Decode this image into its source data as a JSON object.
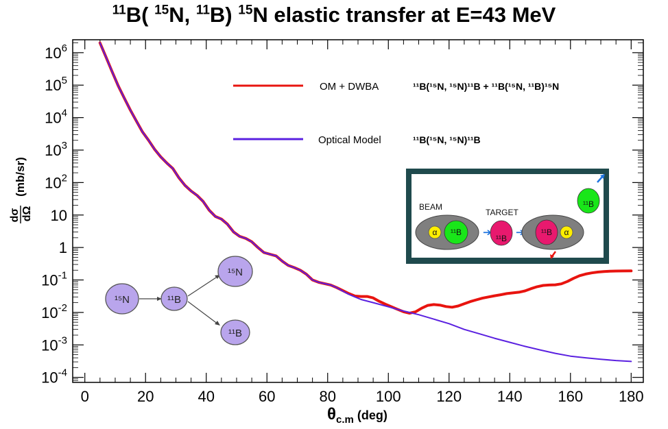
{
  "chart_data": {
    "type": "line",
    "title": "¹¹B( ¹⁵N, ¹¹B) ¹⁵N elastic transfer at E=43 MeV",
    "xlabel": "θc.m (deg)",
    "ylabel": "dσ/dΩ (mb/sr)",
    "xlim": [
      -4,
      184
    ],
    "ylim": [
      7e-05,
      2500000
    ],
    "yscale": "log",
    "xticks": [
      "0",
      "20",
      "40",
      "60",
      "80",
      "100",
      "120",
      "140",
      "160",
      "180"
    ],
    "yticks": [
      "10^-4",
      "10^-3",
      "10^-2",
      "10^-1",
      "1",
      "10",
      "10^2",
      "10^3",
      "10^4",
      "10^5",
      "10^6"
    ],
    "series": [
      {
        "name": "OM + DWBA",
        "color": "#e8140f",
        "x": [
          5,
          7,
          9,
          11,
          13,
          15,
          17,
          19,
          21,
          23,
          25,
          27,
          29,
          31,
          33,
          35,
          37,
          39,
          41,
          43,
          45,
          47,
          49,
          51,
          53,
          55,
          57,
          59,
          61,
          63,
          65,
          67,
          69,
          71,
          73,
          75,
          77,
          79,
          81,
          83,
          85,
          87,
          89,
          91,
          93,
          95,
          97,
          99,
          101,
          103,
          105,
          107,
          109,
          111,
          113,
          115,
          117,
          119,
          121,
          123,
          125,
          127,
          129,
          131,
          133,
          135,
          137,
          139,
          141,
          143,
          145,
          147,
          149,
          151,
          153,
          155,
          157,
          159,
          161,
          163,
          165,
          167,
          169,
          171,
          173,
          175,
          177,
          180
        ],
        "y": [
          2000000,
          720000,
          260000,
          95000,
          40000,
          17000,
          7800,
          3600,
          2000,
          1050,
          620,
          400,
          270,
          140,
          82,
          55,
          40,
          26,
          14,
          9,
          7.5,
          5.2,
          3.0,
          2.2,
          1.9,
          1.5,
          1.0,
          0.7,
          0.62,
          0.55,
          0.38,
          0.28,
          0.24,
          0.2,
          0.15,
          0.1,
          0.085,
          0.077,
          0.07,
          0.058,
          0.047,
          0.038,
          0.032,
          0.031,
          0.031,
          0.028,
          0.022,
          0.018,
          0.015,
          0.0125,
          0.0105,
          0.0095,
          0.0105,
          0.0135,
          0.0165,
          0.0175,
          0.0168,
          0.0152,
          0.0145,
          0.0158,
          0.0185,
          0.0215,
          0.0245,
          0.0275,
          0.03,
          0.0325,
          0.035,
          0.038,
          0.04,
          0.042,
          0.046,
          0.054,
          0.062,
          0.068,
          0.07,
          0.071,
          0.076,
          0.09,
          0.112,
          0.135,
          0.152,
          0.165,
          0.175,
          0.182,
          0.186,
          0.188,
          0.189,
          0.19
        ]
      },
      {
        "name": "Optical Model",
        "color": "#5a20e0",
        "x": [
          5,
          7,
          9,
          11,
          13,
          15,
          17,
          19,
          21,
          23,
          25,
          27,
          29,
          31,
          33,
          35,
          37,
          39,
          41,
          43,
          45,
          47,
          49,
          51,
          53,
          55,
          57,
          59,
          61,
          63,
          65,
          67,
          69,
          71,
          73,
          75,
          77,
          79,
          81,
          83,
          85,
          87,
          89,
          91,
          95,
          100,
          105,
          110,
          115,
          120,
          125,
          130,
          135,
          140,
          145,
          150,
          155,
          160,
          165,
          170,
          175,
          180
        ],
        "y": [
          2000000,
          720000,
          260000,
          95000,
          40000,
          17000,
          7800,
          3600,
          2000,
          1050,
          620,
          400,
          270,
          140,
          82,
          55,
          40,
          26,
          14,
          9,
          7.5,
          5.2,
          3.0,
          2.2,
          1.9,
          1.5,
          1.0,
          0.7,
          0.62,
          0.55,
          0.38,
          0.28,
          0.24,
          0.2,
          0.15,
          0.1,
          0.085,
          0.077,
          0.07,
          0.058,
          0.045,
          0.036,
          0.03,
          0.025,
          0.02,
          0.015,
          0.011,
          0.0085,
          0.0062,
          0.0045,
          0.003,
          0.0022,
          0.0016,
          0.0012,
          0.0009,
          0.0007,
          0.00055,
          0.00045,
          0.0004,
          0.00036,
          0.00033,
          0.00031
        ]
      }
    ],
    "legend": {
      "placement": "top-right",
      "entries": [
        {
          "label": "OM + DWBA",
          "formula": "¹¹B(¹⁵N, ¹⁵N)¹¹B  +  ¹¹B(¹⁵N, ¹¹B)¹⁵N"
        },
        {
          "label": "Optical Model",
          "formula": "¹¹B(¹⁵N, ¹⁵N)¹¹B"
        }
      ]
    },
    "annotations": {
      "scheme": {
        "n15": "¹⁵N",
        "b11": "¹¹B",
        "n15_out": "¹⁵N",
        "b11_out": "¹¹B",
        "node_color": "#b9a5ec"
      },
      "inset": {
        "beam": "BEAM",
        "target": "TARGET",
        "alpha": "α",
        "b11": "¹¹B",
        "frame_color": "#1f4a4d",
        "cluster_color": "#7f7f7f",
        "green": "#19e619",
        "magenta": "#e8196e",
        "yellow": "#ffee00"
      }
    }
  }
}
